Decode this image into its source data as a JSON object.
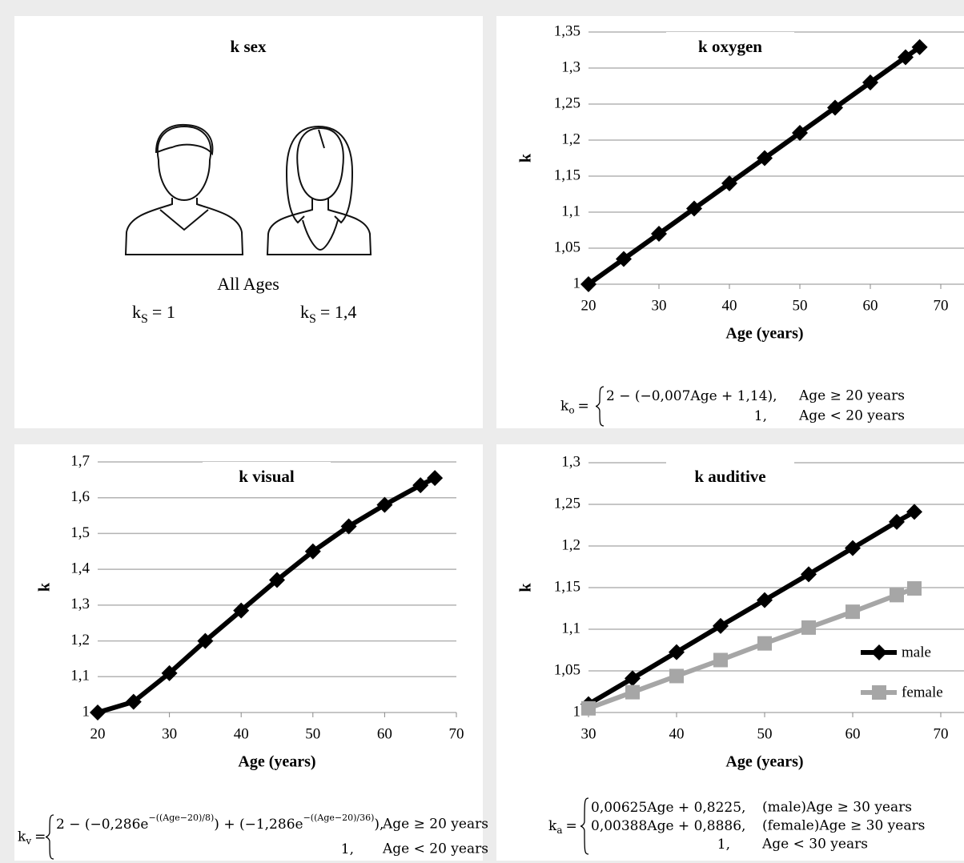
{
  "sex_panel": {
    "title": "k sex",
    "caption": "All Ages",
    "items": [
      {
        "lhs": "k",
        "sub": "S",
        "rhs": "= 1"
      },
      {
        "lhs": "k",
        "sub": "S",
        "rhs": "= 1,4"
      }
    ]
  },
  "chart_data": [
    {
      "type": "line",
      "title": "k oxygen",
      "xlabel": "Age (years)",
      "ylabel": "k",
      "x": [
        20,
        25,
        30,
        35,
        40,
        45,
        50,
        55,
        60,
        65,
        67
      ],
      "series": [
        {
          "color": "#000000",
          "marker": "diamond",
          "values": [
            1.0,
            1.035,
            1.07,
            1.105,
            1.14,
            1.175,
            1.21,
            1.245,
            1.28,
            1.315,
            1.329
          ]
        }
      ],
      "xlim": [
        20,
        70
      ],
      "xticks": [
        20,
        30,
        40,
        50,
        60,
        70
      ],
      "ylim": [
        1,
        1.35
      ],
      "yticks": [
        1,
        {
          "value": 1.05,
          "label": "1,05"
        },
        {
          "value": 1.1,
          "label": "1,1"
        },
        {
          "value": 1.15,
          "label": "1,15"
        },
        {
          "value": 1.2,
          "label": "1,2"
        },
        {
          "value": 1.25,
          "label": "1,25"
        },
        {
          "value": 1.3,
          "label": "1,3"
        },
        {
          "value": 1.35,
          "label": "1,35"
        }
      ],
      "grid": true,
      "formula": {
        "lhs": "k",
        "sub": "o",
        "cases": [
          {
            "expr": [
              {
                "t": "2 − (−0,007Age + 1,14),"
              }
            ],
            "cond": "Age ≥ 20 years"
          },
          {
            "expr": [
              {
                "t": "1,"
              }
            ],
            "cond": "Age < 20 years"
          }
        ]
      }
    },
    {
      "type": "line",
      "title": "k visual",
      "xlabel": "Age (years)",
      "ylabel": "k",
      "x": [
        20,
        25,
        30,
        35,
        40,
        45,
        50,
        55,
        60,
        65,
        67
      ],
      "series": [
        {
          "color": "#000000",
          "marker": "diamond",
          "values": [
            1.0,
            1.03,
            1.11,
            1.2,
            1.285,
            1.37,
            1.45,
            1.52,
            1.58,
            1.635,
            1.655
          ]
        }
      ],
      "xlim": [
        20,
        70
      ],
      "xticks": [
        20,
        30,
        40,
        50,
        60,
        70
      ],
      "ylim": [
        1,
        1.7
      ],
      "yticks": [
        1,
        {
          "value": 1.1,
          "label": "1,1"
        },
        {
          "value": 1.2,
          "label": "1,2"
        },
        {
          "value": 1.3,
          "label": "1,3"
        },
        {
          "value": 1.4,
          "label": "1,4"
        },
        {
          "value": 1.5,
          "label": "1,5"
        },
        {
          "value": 1.6,
          "label": "1,6"
        },
        {
          "value": 1.7,
          "label": "1,7"
        }
      ],
      "grid": true,
      "formula": {
        "lhs": "k",
        "sub": "v",
        "cases": [
          {
            "expr": [
              {
                "t": "2 − (−0,286e"
              },
              {
                "sup": "−((Age−20)/8)"
              },
              {
                "t": ") + (−1,286e"
              },
              {
                "sup": "−((Age−20)/36)"
              },
              {
                "t": "),"
              }
            ],
            "cond": "Age ≥ 20 years"
          },
          {
            "expr": [
              {
                "t": "1,"
              }
            ],
            "cond": "Age < 20 years"
          }
        ]
      }
    },
    {
      "type": "line",
      "title": "k auditive",
      "xlabel": "Age (years)",
      "ylabel": "k",
      "x": [
        30,
        35,
        40,
        45,
        50,
        55,
        60,
        65,
        67
      ],
      "series": [
        {
          "name": "male",
          "color": "#000000",
          "marker": "diamond",
          "values": [
            1.01,
            1.041,
            1.0725,
            1.104,
            1.135,
            1.166,
            1.1975,
            1.229,
            1.241
          ]
        },
        {
          "name": "female",
          "color": "#a6a6a6",
          "marker": "square",
          "values": [
            1.005,
            1.0244,
            1.0438,
            1.063,
            1.083,
            1.102,
            1.121,
            1.141,
            1.149
          ]
        }
      ],
      "xlim": [
        30,
        70
      ],
      "xticks": [
        30,
        40,
        50,
        60,
        70
      ],
      "ylim": [
        1,
        1.3
      ],
      "yticks": [
        1,
        {
          "value": 1.05,
          "label": "1,05"
        },
        {
          "value": 1.1,
          "label": "1,1"
        },
        {
          "value": 1.15,
          "label": "1,15"
        },
        {
          "value": 1.2,
          "label": "1,2"
        },
        {
          "value": 1.25,
          "label": "1,25"
        },
        {
          "value": 1.3,
          "label": "1,3"
        }
      ],
      "grid": true,
      "legend": "right",
      "formula": {
        "lhs": "k",
        "sub": "a",
        "cases": [
          {
            "expr": [
              {
                "t": "0,00625Age + 0,8225,"
              }
            ],
            "cond": "(male)Age ≥ 30 years"
          },
          {
            "expr": [
              {
                "t": "0,00388Age + 0,8886,"
              }
            ],
            "cond": "(female)Age ≥ 30 years"
          },
          {
            "expr": [
              {
                "t": "1,"
              }
            ],
            "cond": "Age < 30 years"
          }
        ]
      }
    }
  ]
}
